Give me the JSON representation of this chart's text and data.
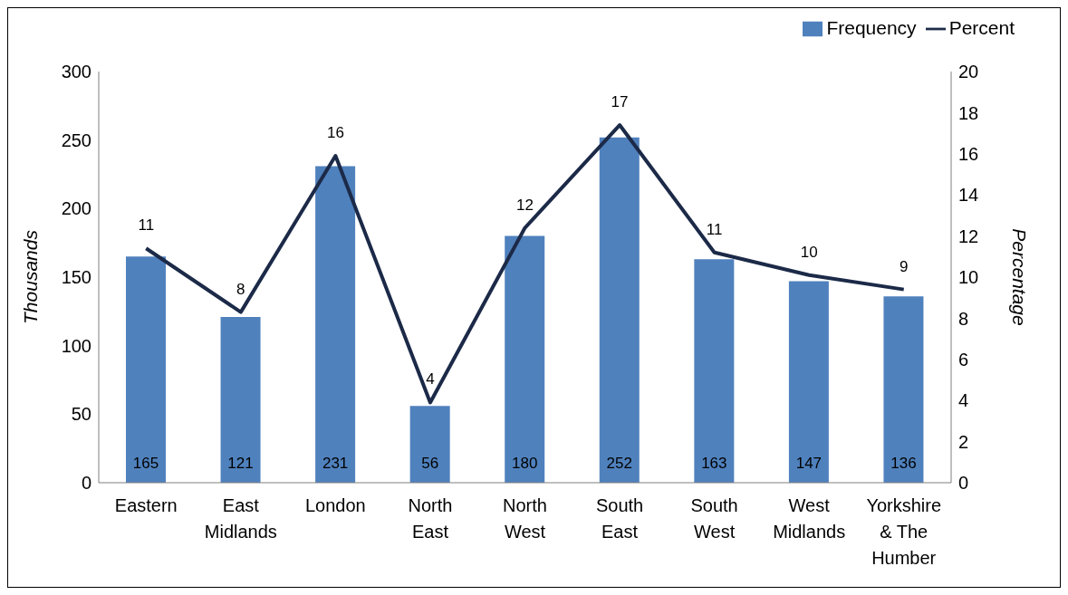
{
  "chart_data": {
    "type": "bar",
    "categories": [
      "Eastern",
      "East Midlands",
      "London",
      "North East",
      "North West",
      "South East",
      "South West",
      "West Midlands",
      "Yorkshire & The Humber"
    ],
    "series": [
      {
        "name": "Frequency",
        "color": "#4f81bd",
        "values": [
          165,
          121,
          231,
          56,
          180,
          252,
          163,
          147,
          136
        ],
        "value_labels": [
          "165",
          "121",
          "231",
          "56",
          "180",
          "252",
          "163",
          "147",
          "136"
        ]
      },
      {
        "name": "Percent",
        "type": "line",
        "axis": "y2",
        "color": "#1c2a48",
        "values": [
          11.4,
          8.3,
          15.9,
          3.9,
          12.4,
          17.4,
          11.2,
          10.1,
          9.4
        ],
        "value_labels": [
          "11",
          "8",
          "16",
          "4",
          "12",
          "17",
          "11",
          "10",
          "9"
        ]
      }
    ],
    "ylabel": "Thousands",
    "y2label": "Percentage",
    "ylim": [
      0,
      300
    ],
    "yticks": [
      0,
      50,
      100,
      150,
      200,
      250,
      300
    ],
    "y2lim": [
      0,
      20
    ],
    "y2ticks": [
      0,
      2,
      4,
      6,
      8,
      10,
      12,
      14,
      16,
      18,
      20
    ],
    "legend": "top right",
    "marker": "none"
  }
}
